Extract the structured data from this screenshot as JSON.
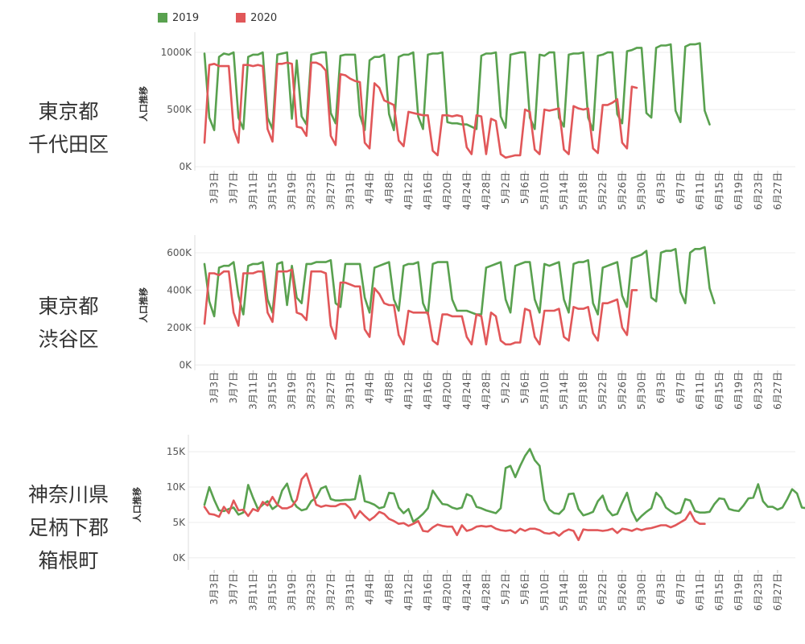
{
  "legend": [
    {
      "label": "2019",
      "color": "#59A14F"
    },
    {
      "label": "2020",
      "color": "#E15759"
    }
  ],
  "colors": {
    "series_2019": "#59A14F",
    "series_2020": "#E15759"
  },
  "date_ticks": [
    "3月3日",
    "3月7日",
    "3月11日",
    "3月15日",
    "3月19日",
    "3月23日",
    "3月27日",
    "3月31日",
    "4月4日",
    "4月8日",
    "4月12日",
    "4月16日",
    "4月20日",
    "4月24日",
    "4月28日",
    "5月2日",
    "5月6日",
    "5月10日",
    "5月14日",
    "5月18日",
    "5月22日",
    "5月26日",
    "5月30日",
    "6月3日",
    "6月7日",
    "6月11日",
    "6月15日",
    "6月19日",
    "6月23日",
    "6月27日"
  ],
  "chart_data": [
    {
      "type": "line",
      "region_lines": [
        "東京都",
        "千代田区"
      ],
      "ylabel": "人口推移",
      "y_ticks": [
        {
          "label": "1000K",
          "value": 1000000
        },
        {
          "label": "500K",
          "value": 500000
        },
        {
          "label": "0K",
          "value": 0
        }
      ],
      "ylim": [
        -20000,
        1120000
      ],
      "x_start": "3月1日",
      "series": [
        {
          "name": "2019",
          "start_day": 0,
          "values": [
            990000,
            430000,
            320000,
            960000,
            990000,
            980000,
            1000000,
            430000,
            330000,
            960000,
            980000,
            980000,
            1000000,
            430000,
            330000,
            980000,
            990000,
            1000000,
            420000,
            930000,
            440000,
            370000,
            980000,
            990000,
            1000000,
            1000000,
            470000,
            380000,
            970000,
            980000,
            980000,
            980000,
            450000,
            320000,
            930000,
            960000,
            960000,
            980000,
            460000,
            320000,
            960000,
            980000,
            980000,
            1000000,
            440000,
            330000,
            980000,
            990000,
            990000,
            1000000,
            390000,
            380000,
            380000,
            370000,
            370000,
            350000,
            330000,
            970000,
            990000,
            990000,
            1000000,
            440000,
            340000,
            980000,
            990000,
            1000000,
            1000000,
            430000,
            330000,
            980000,
            970000,
            1000000,
            1000000,
            430000,
            350000,
            980000,
            990000,
            990000,
            1000000,
            430000,
            320000,
            970000,
            980000,
            1000000,
            1000000,
            460000,
            380000,
            1010000,
            1020000,
            1040000,
            1040000,
            470000,
            430000,
            1040000,
            1060000,
            1060000,
            1070000,
            490000,
            390000,
            1050000,
            1070000,
            1070000,
            1080000,
            490000,
            370000
          ]
        },
        {
          "name": "2020",
          "start_day": 0,
          "values": [
            210000,
            890000,
            900000,
            880000,
            880000,
            880000,
            330000,
            210000,
            890000,
            890000,
            880000,
            890000,
            880000,
            330000,
            220000,
            900000,
            900000,
            910000,
            900000,
            350000,
            340000,
            270000,
            910000,
            910000,
            890000,
            840000,
            270000,
            190000,
            810000,
            800000,
            770000,
            750000,
            740000,
            210000,
            160000,
            730000,
            690000,
            580000,
            560000,
            540000,
            230000,
            180000,
            480000,
            470000,
            460000,
            450000,
            450000,
            140000,
            100000,
            450000,
            450000,
            440000,
            450000,
            440000,
            170000,
            110000,
            450000,
            440000,
            110000,
            420000,
            400000,
            110000,
            80000,
            90000,
            100000,
            100000,
            500000,
            480000,
            150000,
            110000,
            500000,
            490000,
            500000,
            510000,
            150000,
            110000,
            530000,
            510000,
            500000,
            510000,
            160000,
            120000,
            540000,
            540000,
            560000,
            590000,
            210000,
            160000,
            700000,
            690000
          ]
        }
      ]
    },
    {
      "type": "line",
      "region_lines": [
        "東京都",
        "渋谷区"
      ],
      "ylabel": "人口推移",
      "y_ticks": [
        {
          "label": "600K",
          "value": 600000
        },
        {
          "label": "400K",
          "value": 400000
        },
        {
          "label": "200K",
          "value": 200000
        },
        {
          "label": "0K",
          "value": 0
        }
      ],
      "ylim": [
        -20000,
        660000
      ],
      "x_start": "3月1日",
      "series": [
        {
          "name": "2019",
          "start_day": 0,
          "values": [
            540000,
            340000,
            260000,
            520000,
            530000,
            530000,
            550000,
            370000,
            270000,
            530000,
            540000,
            540000,
            550000,
            350000,
            280000,
            540000,
            550000,
            320000,
            530000,
            360000,
            330000,
            540000,
            540000,
            550000,
            550000,
            550000,
            560000,
            330000,
            310000,
            540000,
            540000,
            540000,
            540000,
            360000,
            280000,
            520000,
            530000,
            540000,
            550000,
            350000,
            290000,
            530000,
            540000,
            540000,
            550000,
            330000,
            270000,
            540000,
            550000,
            550000,
            550000,
            350000,
            290000,
            290000,
            290000,
            280000,
            270000,
            270000,
            520000,
            530000,
            540000,
            550000,
            350000,
            280000,
            530000,
            540000,
            550000,
            550000,
            350000,
            280000,
            540000,
            530000,
            540000,
            550000,
            350000,
            280000,
            540000,
            550000,
            550000,
            560000,
            330000,
            270000,
            520000,
            530000,
            540000,
            550000,
            370000,
            310000,
            570000,
            580000,
            590000,
            610000,
            360000,
            340000,
            600000,
            610000,
            610000,
            620000,
            390000,
            330000,
            600000,
            620000,
            620000,
            630000,
            410000,
            330000
          ]
        },
        {
          "name": "2020",
          "start_day": 0,
          "values": [
            220000,
            490000,
            490000,
            480000,
            500000,
            500000,
            280000,
            210000,
            490000,
            490000,
            490000,
            500000,
            500000,
            280000,
            230000,
            500000,
            500000,
            500000,
            510000,
            280000,
            270000,
            240000,
            500000,
            500000,
            500000,
            490000,
            210000,
            140000,
            440000,
            440000,
            430000,
            420000,
            420000,
            190000,
            150000,
            410000,
            380000,
            330000,
            320000,
            320000,
            160000,
            110000,
            290000,
            280000,
            280000,
            280000,
            280000,
            130000,
            110000,
            270000,
            270000,
            260000,
            260000,
            260000,
            150000,
            110000,
            270000,
            260000,
            110000,
            280000,
            260000,
            130000,
            110000,
            110000,
            120000,
            120000,
            300000,
            290000,
            150000,
            110000,
            290000,
            290000,
            290000,
            300000,
            150000,
            130000,
            310000,
            300000,
            300000,
            310000,
            170000,
            130000,
            330000,
            330000,
            340000,
            350000,
            200000,
            160000,
            400000,
            400000
          ]
        }
      ]
    },
    {
      "type": "line",
      "region_lines": [
        "神奈川県",
        "足柄下郡",
        "箱根町"
      ],
      "ylabel": "人口推移",
      "y_ticks": [
        {
          "label": "15K",
          "value": 15000
        },
        {
          "label": "10K",
          "value": 10000
        },
        {
          "label": "5K",
          "value": 5000
        },
        {
          "label": "0K",
          "value": 0
        }
      ],
      "ylim": [
        -1500,
        16500
      ],
      "x_start": "3月1日",
      "series": [
        {
          "name": "2019",
          "start_day": 0,
          "values": [
            7500,
            10000,
            8200,
            6700,
            6600,
            6900,
            7100,
            6100,
            6400,
            10300,
            8500,
            6900,
            7500,
            8000,
            6900,
            7400,
            9500,
            10500,
            8200,
            7200,
            6700,
            6900,
            8000,
            8500,
            9800,
            10100,
            8300,
            8100,
            8100,
            8200,
            8200,
            8300,
            11600,
            8000,
            7800,
            7500,
            7000,
            7200,
            9200,
            9100,
            7100,
            6300,
            6900,
            5100,
            5600,
            6200,
            7000,
            9500,
            8500,
            7600,
            7500,
            7100,
            6900,
            7100,
            9000,
            8700,
            7200,
            7000,
            6700,
            6500,
            6300,
            7000,
            12700,
            13000,
            11400,
            13000,
            14400,
            15400,
            13800,
            13000,
            8200,
            6800,
            6300,
            6200,
            6900,
            9000,
            9100,
            6900,
            6000,
            6200,
            6500,
            8000,
            8800,
            6800,
            6000,
            6200,
            7800,
            9200,
            6600,
            5200,
            5900,
            6500,
            7000,
            9200,
            8500,
            7100,
            6600,
            6200,
            6400,
            8300,
            8100,
            6600,
            6400,
            6400,
            6500,
            7600,
            8400,
            8300,
            6900,
            6700,
            6600,
            7400,
            8400,
            8500,
            10400,
            8000,
            7200,
            7200,
            6800,
            7100,
            8300,
            9700,
            9100,
            7100,
            7000,
            7300,
            6500,
            7600,
            8900,
            8200
          ]
        },
        {
          "name": "2020",
          "start_day": 0,
          "values": [
            7200,
            6200,
            6100,
            5800,
            7200,
            6300,
            8100,
            6700,
            6800,
            5900,
            6900,
            6600,
            7900,
            7400,
            8600,
            7500,
            7000,
            7000,
            7300,
            8200,
            11100,
            11900,
            9800,
            7500,
            7200,
            7400,
            7300,
            7300,
            7600,
            7600,
            7000,
            5600,
            6600,
            5900,
            5300,
            5800,
            6500,
            6200,
            5500,
            5200,
            4800,
            4900,
            4500,
            4800,
            5200,
            3800,
            3700,
            4300,
            4700,
            4500,
            4400,
            4400,
            3200,
            4600,
            3800,
            4000,
            4400,
            4500,
            4400,
            4500,
            4100,
            3900,
            3800,
            3900,
            3500,
            4100,
            3800,
            4100,
            4100,
            3900,
            3500,
            3400,
            3600,
            3100,
            3700,
            4000,
            3800,
            2500,
            4000,
            3900,
            3900,
            3900,
            3800,
            3900,
            4100,
            3500,
            4100,
            4000,
            3800,
            4100,
            3900,
            4100,
            4200,
            4400,
            4600,
            4600,
            4300,
            4600,
            5000,
            5400,
            6500,
            5200,
            4800,
            4800
          ]
        }
      ]
    }
  ]
}
